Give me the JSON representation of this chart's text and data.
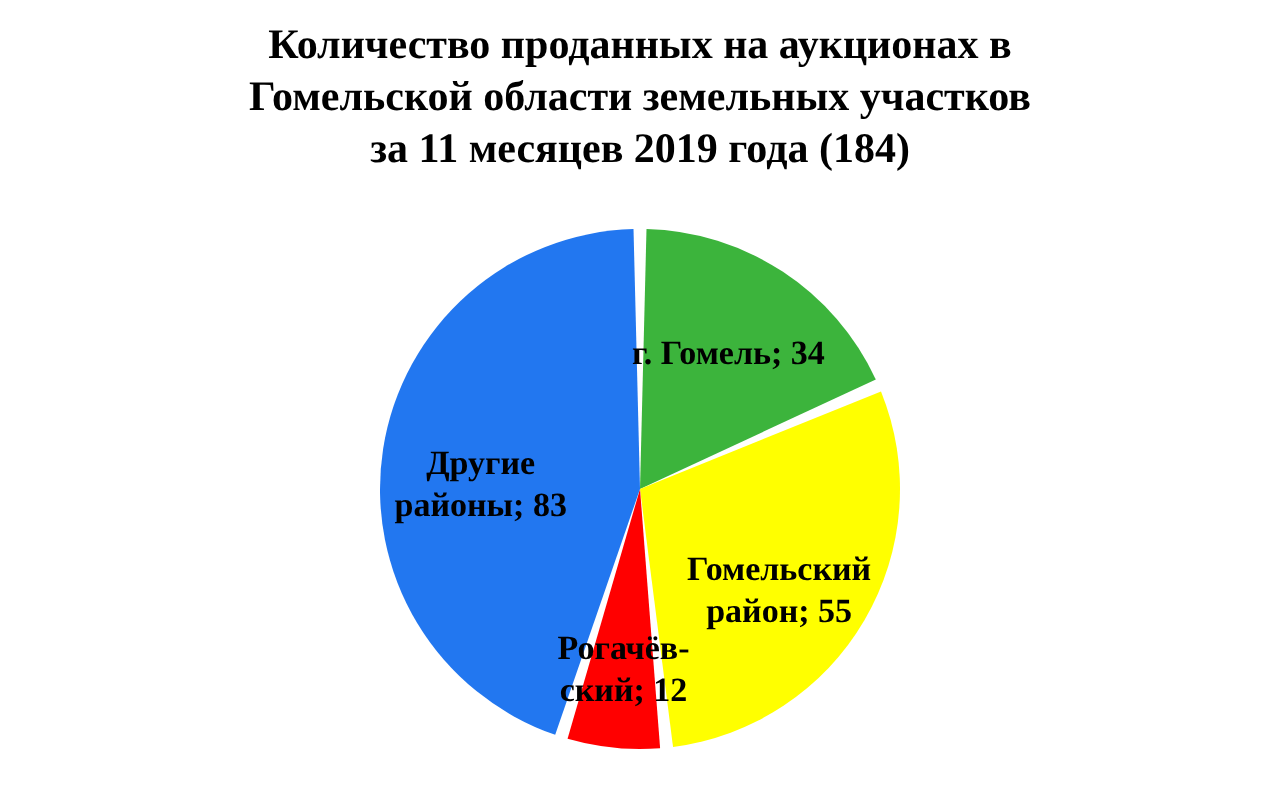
{
  "chart_data": {
    "type": "pie",
    "title": "Количество проданных на аукционах в\nГомельской области земельных участков\nза 11 месяцев 2019 года (184)",
    "categories": [
      null,
      null,
      null,
      null
    ],
    "values": [
      34,
      55,
      12,
      83
    ],
    "colors": [
      "#3cb43c",
      "#ffff00",
      "#ff0000",
      "#2277f0"
    ],
    "value_labels": [
      "г. Гомель; 34",
      "Гомельский\nрайон; 55",
      "Рогачёв-\nский; 12",
      "Другие\nрайоны; 83"
    ]
  }
}
